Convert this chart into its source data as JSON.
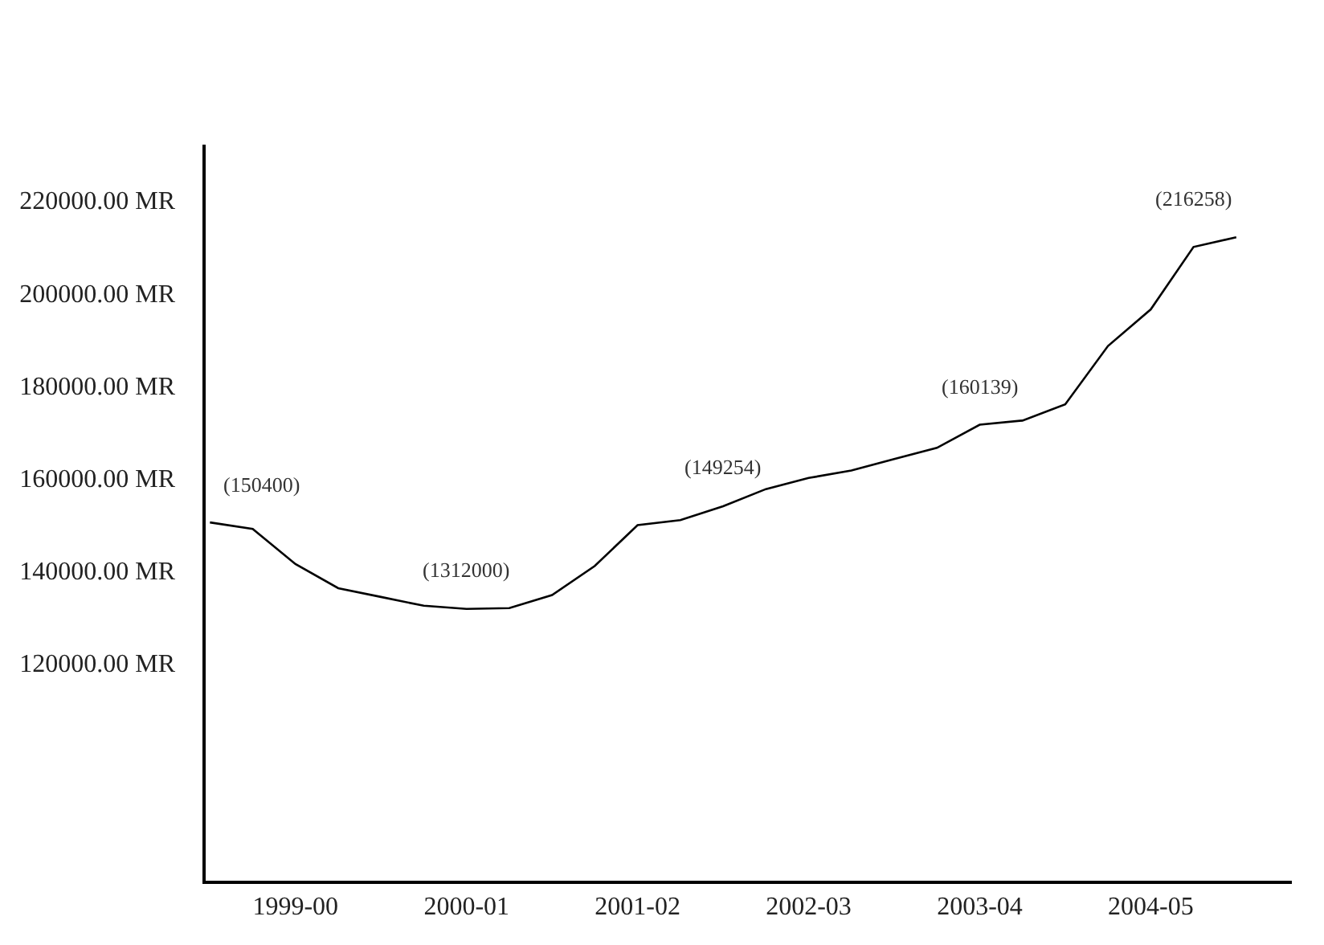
{
  "chart_data": {
    "type": "line",
    "categories": [
      null,
      null,
      "1999-00",
      null,
      null,
      null,
      "2000-01",
      null,
      null,
      null,
      "2001-02",
      null,
      null,
      null,
      "2002-03",
      null,
      null,
      null,
      "2003-04",
      null,
      null,
      null,
      "2004-05",
      null,
      null
    ],
    "series": [
      {
        "color": "#000000",
        "values": [
          150400,
          149000,
          141400,
          136200,
          134300,
          132400,
          131700,
          131900,
          134700,
          141000,
          149800,
          150900,
          153900,
          157600,
          160000,
          161600,
          164100,
          166500,
          171500,
          172400,
          175900,
          188500,
          196400,
          209900,
          212000
        ]
      }
    ],
    "ylim": [
      73000,
      232000
    ],
    "yticks": [
      {
        "value": 120000,
        "label": "120000.00 MR"
      },
      {
        "value": 140000,
        "label": "140000.00 MR"
      },
      {
        "value": 160000,
        "label": "160000.00 MR"
      },
      {
        "value": 180000,
        "label": "180000.00 MR"
      },
      {
        "value": 200000,
        "label": "200000.00 MR"
      },
      {
        "value": 220000,
        "label": "220000.00 MR"
      }
    ],
    "annotations": [
      "(150400)",
      "(1312000)",
      "(149254)",
      "(160139)",
      "(216258)"
    ],
    "marker": "none",
    "line_style": "solid"
  }
}
